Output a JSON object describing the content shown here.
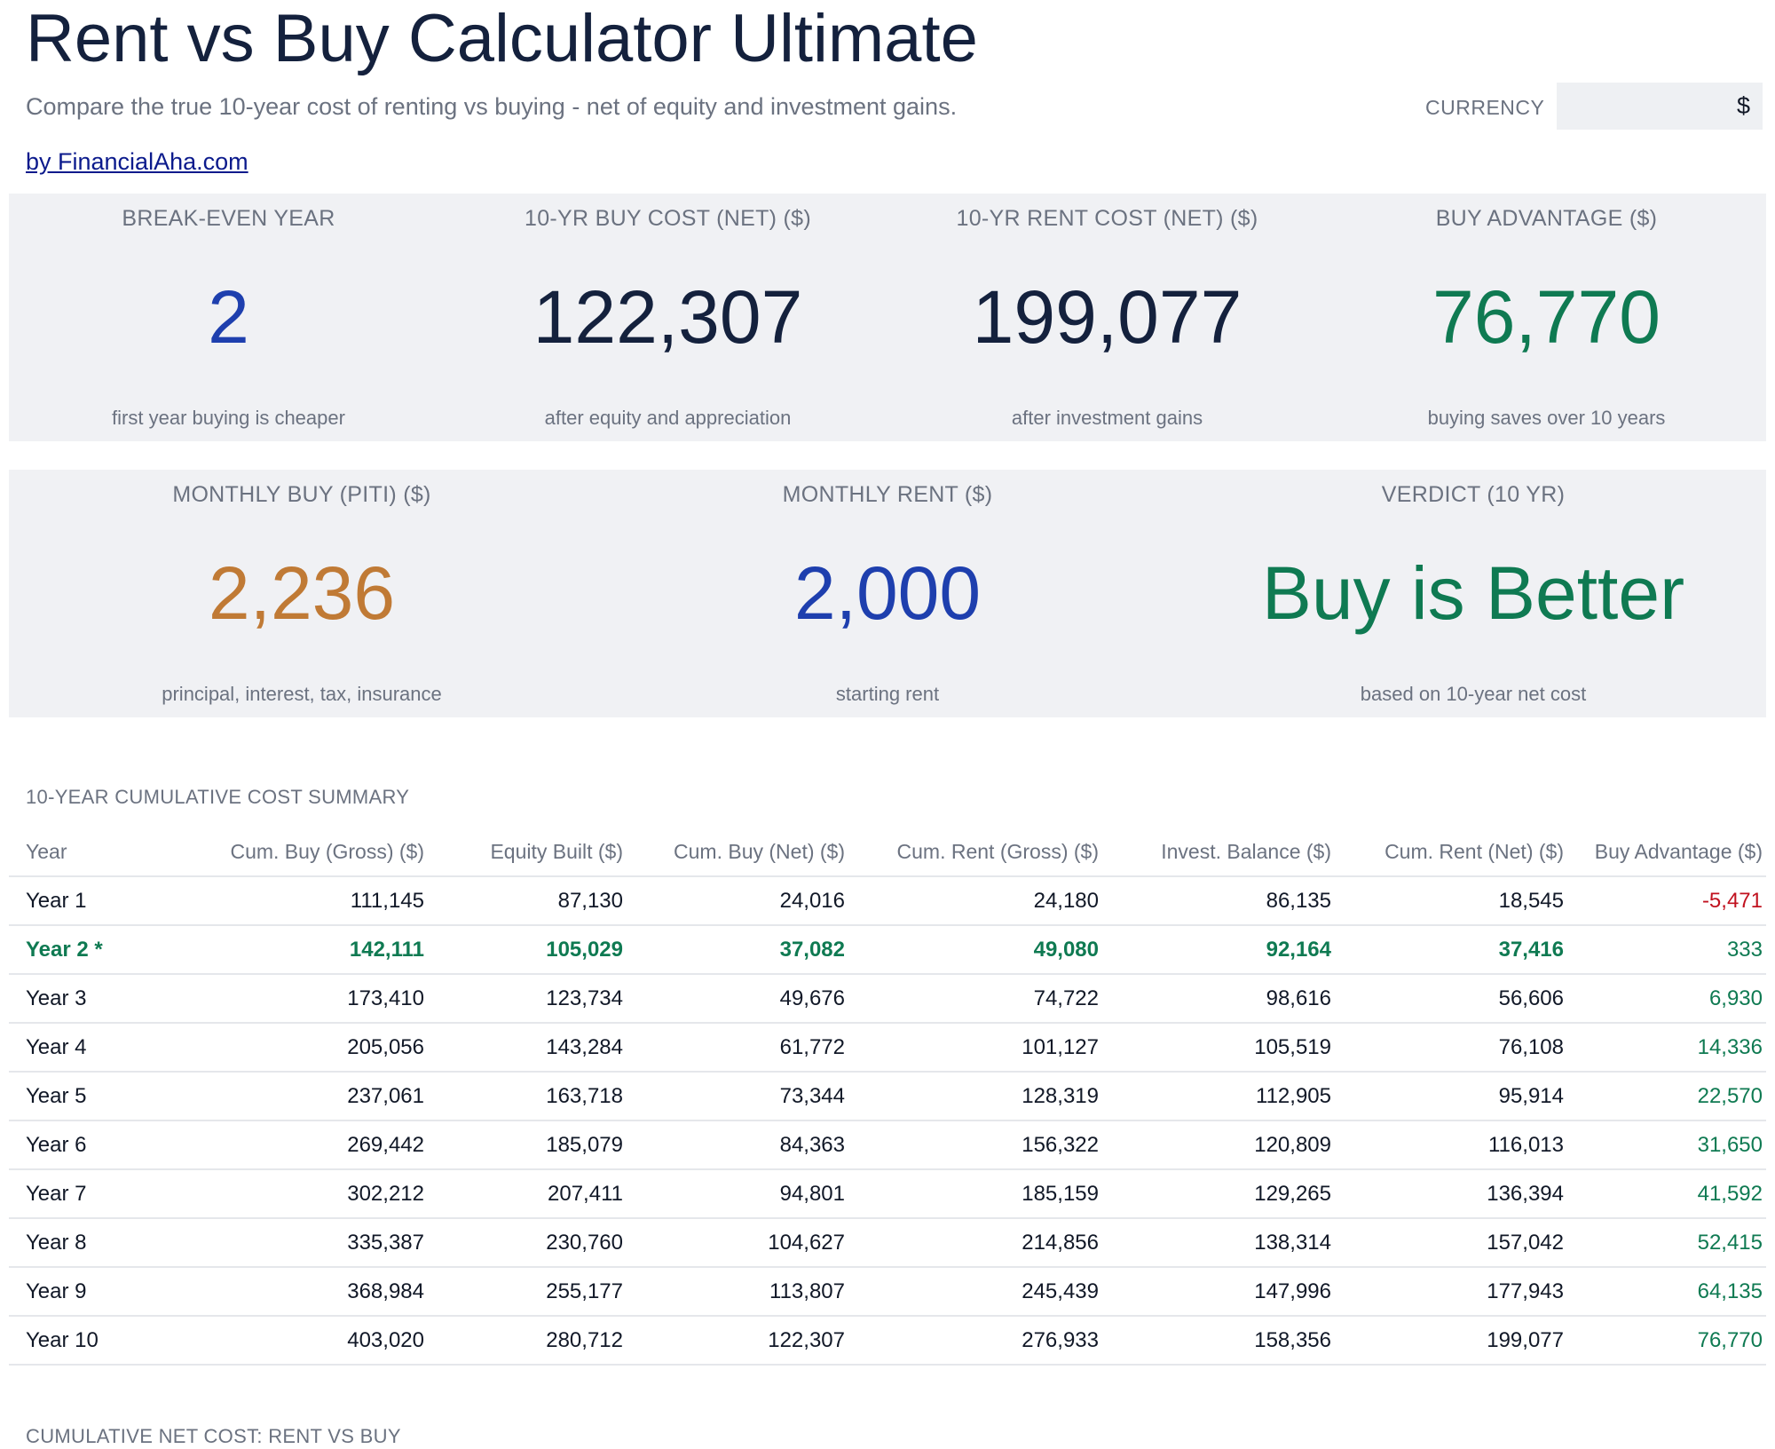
{
  "header": {
    "title": "Rent vs Buy Calculator Ultimate",
    "subtitle": "Compare the true 10-year cost of renting vs buying - net of equity and investment gains.",
    "byline": "by FinancialAha.com",
    "currency_label": "CURRENCY",
    "currency_value": "$"
  },
  "kpis_row1": [
    {
      "label": "BREAK-EVEN YEAR",
      "value": "2",
      "sub": "first year buying is cheaper",
      "color": "#1e3fae"
    },
    {
      "label": "10-YR BUY COST (NET) ($)",
      "value": "122,307",
      "sub": "after equity and appreciation",
      "color": "#14213d"
    },
    {
      "label": "10-YR RENT COST (NET) ($)",
      "value": "199,077",
      "sub": "after investment gains",
      "color": "#14213d"
    },
    {
      "label": "BUY ADVANTAGE ($)",
      "value": "76,770",
      "sub": "buying saves over 10 years",
      "color": "#0f7a52"
    }
  ],
  "kpis_row2": [
    {
      "label": "MONTHLY BUY (PITI) ($)",
      "value": "2,236",
      "sub": "principal, interest, tax, insurance",
      "color": "#c07a35"
    },
    {
      "label": "MONTHLY RENT ($)",
      "value": "2,000",
      "sub": "starting rent",
      "color": "#1e3fae"
    },
    {
      "label": "VERDICT (10 YR)",
      "value": "Buy is Better",
      "sub": "based on 10-year net cost",
      "color": "#0f7a52"
    }
  ],
  "summary": {
    "title": "10-YEAR CUMULATIVE COST SUMMARY",
    "columns": [
      "Year",
      "Cum. Buy (Gross) ($)",
      "Equity Built ($)",
      "Cum. Buy (Net) ($)",
      "Cum. Rent (Gross) ($)",
      "Invest. Balance ($)",
      "Cum. Rent (Net) ($)",
      "Buy Advantage ($)"
    ],
    "rows": [
      [
        "Year 1",
        "111,145",
        "87,130",
        "24,016",
        "24,180",
        "86,135",
        "18,545",
        "-5,471"
      ],
      [
        "Year 2 *",
        "142,111",
        "105,029",
        "37,082",
        "49,080",
        "92,164",
        "37,416",
        "333"
      ],
      [
        "Year 3",
        "173,410",
        "123,734",
        "49,676",
        "74,722",
        "98,616",
        "56,606",
        "6,930"
      ],
      [
        "Year 4",
        "205,056",
        "143,284",
        "61,772",
        "101,127",
        "105,519",
        "76,108",
        "14,336"
      ],
      [
        "Year 5",
        "237,061",
        "163,718",
        "73,344",
        "128,319",
        "112,905",
        "95,914",
        "22,570"
      ],
      [
        "Year 6",
        "269,442",
        "185,079",
        "84,363",
        "156,322",
        "120,809",
        "116,013",
        "31,650"
      ],
      [
        "Year 7",
        "302,212",
        "207,411",
        "94,801",
        "185,159",
        "129,265",
        "136,394",
        "41,592"
      ],
      [
        "Year 8",
        "335,387",
        "230,760",
        "104,627",
        "214,856",
        "138,314",
        "157,042",
        "52,415"
      ],
      [
        "Year 9",
        "368,984",
        "255,177",
        "113,807",
        "245,439",
        "147,996",
        "177,943",
        "64,135"
      ],
      [
        "Year 10",
        "403,020",
        "280,712",
        "122,307",
        "276,933",
        "158,356",
        "199,077",
        "76,770"
      ]
    ],
    "highlight_row": 1
  },
  "chart_section": {
    "title": "CUMULATIVE NET COST: RENT VS BUY"
  },
  "colors": {
    "positive": "#0f7a52",
    "negative": "#c1121f",
    "panel_bg": "#f0f1f4"
  }
}
